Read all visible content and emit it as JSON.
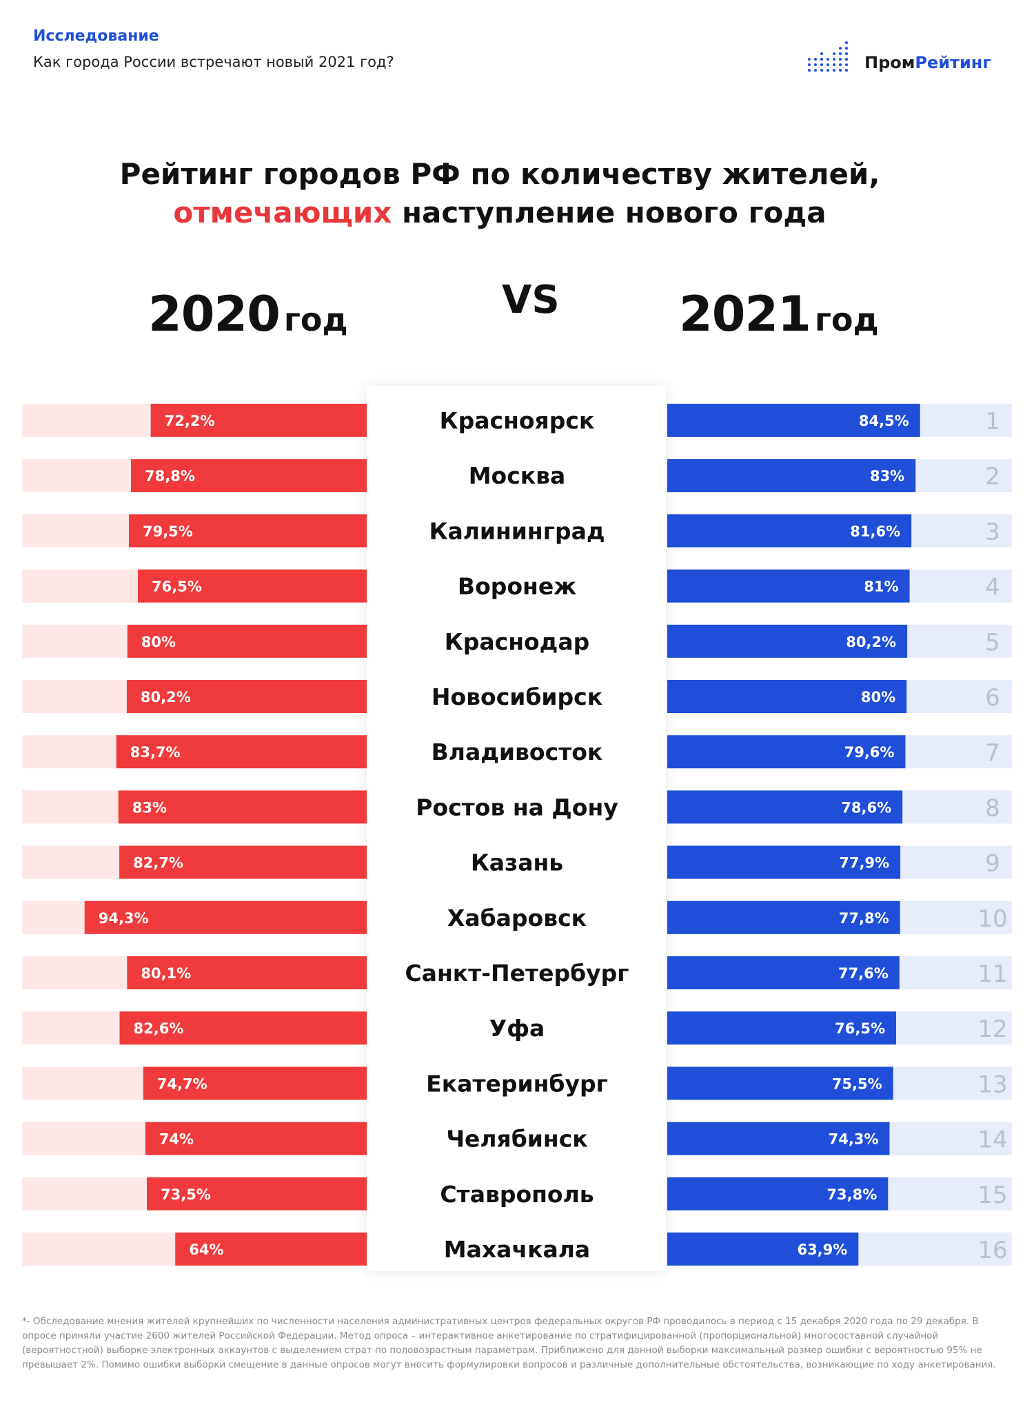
{
  "header": {
    "kicker": "Исследование",
    "subtitle": "Как города России встречают новый 2021 год?",
    "logo": {
      "part1": "Пром",
      "part2": "Рейтинг"
    }
  },
  "title": {
    "line1": "Рейтинг городов РФ по количеству жителей,",
    "line2_accent": "отмечающих",
    "line2_rest": " наступление нового года"
  },
  "years": {
    "left_num": "2020",
    "left_unit": "год",
    "vs": "VS",
    "right_num": "2021",
    "right_unit": "год"
  },
  "colors": {
    "red": "#f03a3c",
    "red_track": "#fde7e7",
    "blue": "#1f4fd8",
    "blue_track": "#e6ecfa",
    "rank": "#b9c0cc"
  },
  "chart_data": {
    "type": "bar",
    "categories": [
      "Красноярск",
      "Москва",
      "Калининград",
      "Воронеж",
      "Краснодар",
      "Новосибирск",
      "Владивосток",
      "Ростов на Дону",
      "Казань",
      "Хабаровск",
      "Санкт-Петербург",
      "Уфа",
      "Екатеринбург",
      "Челябинск",
      "Ставрополь",
      "Махачкала"
    ],
    "ranks": [
      1,
      2,
      3,
      4,
      5,
      6,
      7,
      8,
      9,
      10,
      11,
      12,
      13,
      14,
      15,
      16
    ],
    "series": [
      {
        "name": "2020 год",
        "values": [
          72.2,
          78.8,
          79.5,
          76.5,
          80,
          80.2,
          83.7,
          83,
          82.7,
          94.3,
          80.1,
          82.6,
          74.7,
          74,
          73.5,
          64
        ],
        "labels": [
          "72,2%",
          "78,8%",
          "79,5%",
          "76,5%",
          "80%",
          "80,2%",
          "83,7%",
          "83%",
          "82,7%",
          "94,3%",
          "80,1%",
          "82,6%",
          "74,7%",
          "74%",
          "73,5%",
          "64%"
        ]
      },
      {
        "name": "2021 год",
        "values": [
          84.5,
          83,
          81.6,
          81,
          80.2,
          80,
          79.6,
          78.6,
          77.9,
          77.8,
          77.6,
          76.5,
          75.5,
          74.3,
          73.8,
          63.9
        ],
        "labels": [
          "84,5%",
          "83%",
          "81,6%",
          "81%",
          "80,2%",
          "80%",
          "79,6%",
          "78,6%",
          "77,9%",
          "77,8%",
          "77,6%",
          "76,5%",
          "75,5%",
          "74,3%",
          "73,8%",
          "63,9%"
        ]
      }
    ]
  },
  "footnote": "*- Обследование мнения жителей крупнейших по численности населения административных центров федеральных округов РФ проводилось в период с 15 декабря 2020 года по 29 декабря. В опросе приняли участие 2600 жителей Российской Федерации. Метод опроса – интерактивное анкетирование по стратифицированной (пропорциональной) многосоставной случайной (вероятностной) выборке электронных аккаунтов с выделением страт по половозрастным параметрам. Приближено для данной выборки максимальный размер ошибки с вероятностью 95% не превышает 2%. Помимо ошибки выборки смещение в данные опросов могут вносить формулировки вопросов и различные дополнительные обстоятельства, возникающие по ходу анкетирования."
}
